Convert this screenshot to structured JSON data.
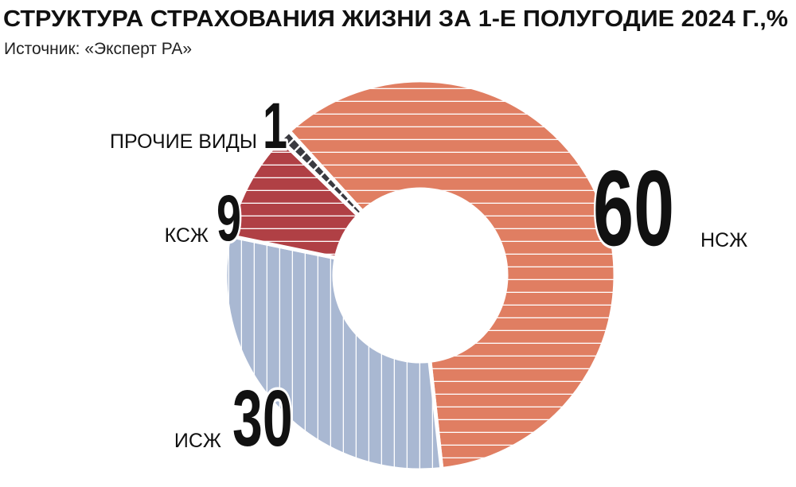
{
  "chart_data": {
    "type": "donut",
    "title": "СТРУКТУРА СТРАХОВАНИЯ ЖИЗНИ ЗА 1-Е ПОЛУГОДИЕ 2024 Г.,%",
    "subtitle": "Источник: «Эксперт РА»",
    "categories": [
      "НСЖ",
      "ИСЖ",
      "КСЖ",
      "ПРОЧИЕ ВИДЫ"
    ],
    "values": [
      60,
      30,
      9,
      1
    ],
    "colors": [
      "#e07e62",
      "#a9b8d2",
      "#b04045",
      "#3a3a40"
    ]
  }
}
